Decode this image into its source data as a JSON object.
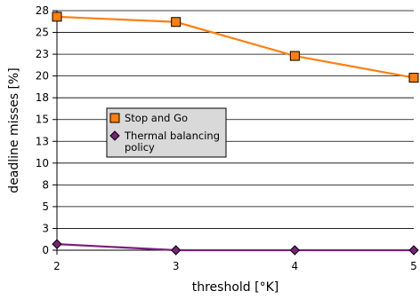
{
  "chart_data": {
    "type": "line",
    "title": "",
    "xlabel": "threshold  [°K]",
    "ylabel": "deadline misses [%]",
    "x": [
      2,
      3,
      4,
      5
    ],
    "x_ticks": [
      "2",
      "3",
      "4",
      "5"
    ],
    "y_ticks": [
      "0",
      "3",
      "5",
      "8",
      "10",
      "13",
      "15",
      "18",
      "20",
      "23",
      "25",
      "28"
    ],
    "ylim": [
      0,
      27.5
    ],
    "grid": "horizontal",
    "legend_position": "center-left",
    "series": [
      {
        "name": "Stop and Go",
        "color": "#ff7f0e",
        "marker": "square",
        "values": [
          26.8,
          26.2,
          22.3,
          19.8
        ]
      },
      {
        "name": "Thermal balancing policy",
        "color": "#7b1f7b",
        "marker": "diamond",
        "values": [
          0.7,
          0.0,
          0.0,
          0.0
        ]
      }
    ]
  }
}
